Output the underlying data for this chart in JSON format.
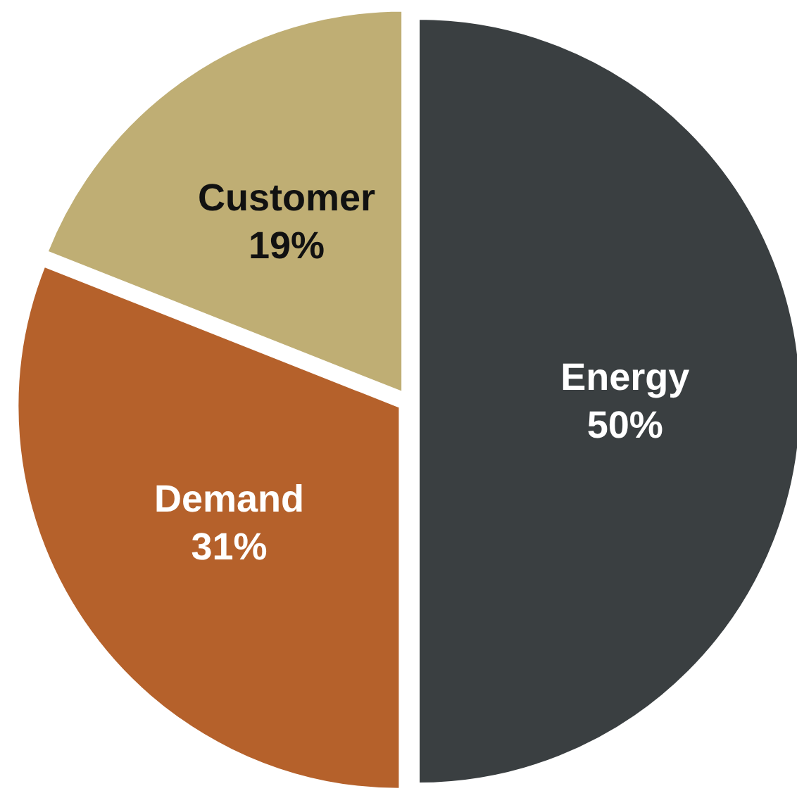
{
  "chart_data": {
    "type": "pie",
    "categories": [
      "Energy",
      "Demand",
      "Customer"
    ],
    "values": [
      50,
      31,
      19
    ],
    "colors": [
      "#3a3f41",
      "#b5612b",
      "#bfae74"
    ],
    "value_labels": [
      "50%",
      "31%",
      "19%"
    ]
  }
}
